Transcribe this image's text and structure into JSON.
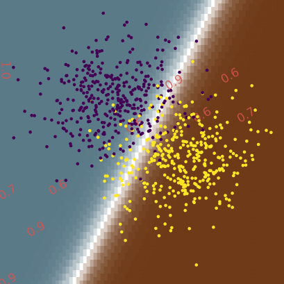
{
  "chart_data": {
    "type": "scatter",
    "title": "",
    "xlabel": "",
    "ylabel": "",
    "xlim": [
      -3.0,
      3.0
    ],
    "ylim": [
      -3.0,
      3.0
    ],
    "grid": false,
    "legend": "none",
    "decision_surface": {
      "kind": "filled-contour",
      "direction": [
        1.0,
        -0.5
      ],
      "steepness": 2.2,
      "colors": {
        "class_0_side": "#5b7a88",
        "class_1_side": "#6e3a17",
        "boundary": "#ffffff"
      },
      "contour_labels": [
        {
          "text": "1.0",
          "x": -2.96,
          "y": 1.52,
          "angle": 90
        },
        {
          "text": "0.9",
          "x": 0.72,
          "y": 1.19,
          "angle": -30
        },
        {
          "text": "0.6",
          "x": 1.9,
          "y": 1.33,
          "angle": -30
        },
        {
          "text": "0.6",
          "x": -0.12,
          "y": 0.28,
          "angle": -30
        },
        {
          "text": "0.6",
          "x": 1.31,
          "y": 0.5,
          "angle": -30
        },
        {
          "text": "0.7",
          "x": 2.24,
          "y": 0.5,
          "angle": -30
        },
        {
          "text": "0.7",
          "x": -2.8,
          "y": -1.13,
          "angle": -30
        },
        {
          "text": "0.6",
          "x": -1.74,
          "y": -1.03,
          "angle": -30
        },
        {
          "text": "0.9",
          "x": -2.2,
          "y": -1.91,
          "angle": -30
        },
        {
          "text": "0.9",
          "x": -2.8,
          "y": -3.0,
          "angle": -30
        }
      ]
    },
    "series": [
      {
        "color": "#440154",
        "mean": [
          -0.6,
          0.9
        ],
        "spread": [
          0.75,
          0.6
        ],
        "count": 380,
        "points": [
          [
            -2.05,
            1.55
          ],
          [
            -1.7,
            1.32
          ],
          [
            -1.28,
            1.26
          ],
          [
            -1.04,
            1.4
          ],
          [
            -0.88,
            1.46
          ],
          [
            -0.46,
            1.68
          ],
          [
            -0.28,
            2.24
          ],
          [
            -0.32,
            2.53
          ],
          [
            0.57,
            2.12
          ],
          [
            1.15,
            2.13
          ],
          [
            -2.33,
            0.56
          ],
          [
            -2.36,
            0.21
          ],
          [
            -2.01,
            -0.1
          ],
          [
            -1.61,
            -0.81
          ],
          [
            -1.8,
            -0.82
          ],
          [
            -0.74,
            -0.31
          ],
          [
            -1.36,
            -0.46
          ],
          [
            0.0,
            0.41
          ],
          [
            0.54,
            0.21
          ],
          [
            0.78,
            0.82
          ],
          [
            0.94,
            0.52
          ],
          [
            -1.6,
            0.45
          ],
          [
            -1.05,
            0.84
          ],
          [
            -0.5,
            1.2
          ],
          [
            0.2,
            0.75
          ]
        ]
      },
      {
        "color": "#fde725",
        "mean": [
          0.8,
          -0.35
        ],
        "spread": [
          0.75,
          0.6
        ],
        "count": 380,
        "points": [
          [
            -1.11,
            0.87
          ],
          [
            -0.61,
            0.78
          ],
          [
            -0.45,
            0.37
          ],
          [
            -0.93,
            0.1
          ],
          [
            0.32,
            0.1
          ],
          [
            1.91,
            0.93
          ],
          [
            1.49,
            0.12
          ],
          [
            2.45,
            0.22
          ],
          [
            2.34,
            -0.37
          ],
          [
            2.02,
            -0.66
          ],
          [
            1.76,
            -1.13
          ],
          [
            1.91,
            -1.38
          ],
          [
            1.51,
            -1.8
          ],
          [
            1.0,
            -1.83
          ],
          [
            0.36,
            -1.98
          ],
          [
            -0.43,
            -1.9
          ],
          [
            -0.35,
            -2.08
          ],
          [
            -0.26,
            -1.45
          ],
          [
            -0.02,
            -0.8
          ],
          [
            0.55,
            -0.5
          ],
          [
            1.2,
            -0.3
          ],
          [
            0.05,
            -1.2
          ],
          [
            0.9,
            -1.1
          ],
          [
            1.4,
            -0.7
          ],
          [
            0.6,
            -1.55
          ]
        ]
      }
    ]
  }
}
